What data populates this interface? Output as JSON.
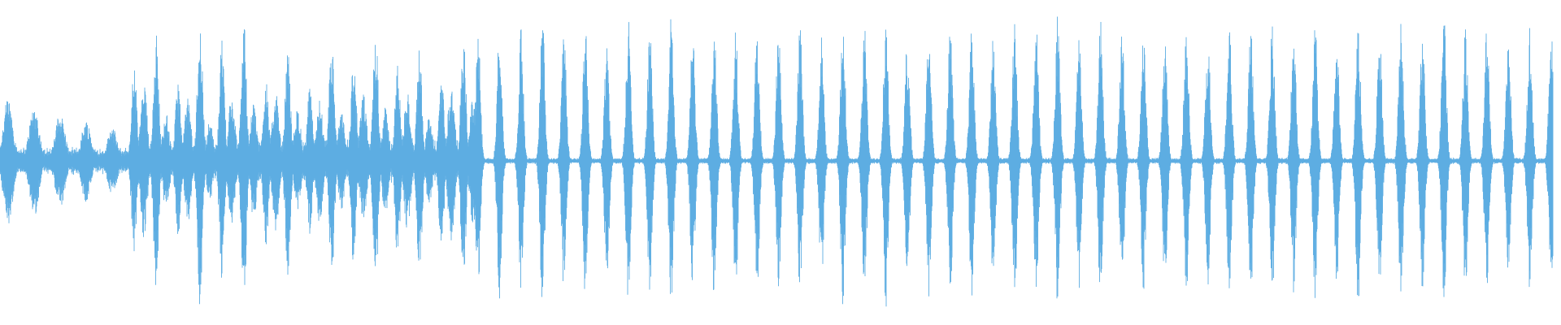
{
  "waveform": {
    "color": "#5dade2"
  }
}
